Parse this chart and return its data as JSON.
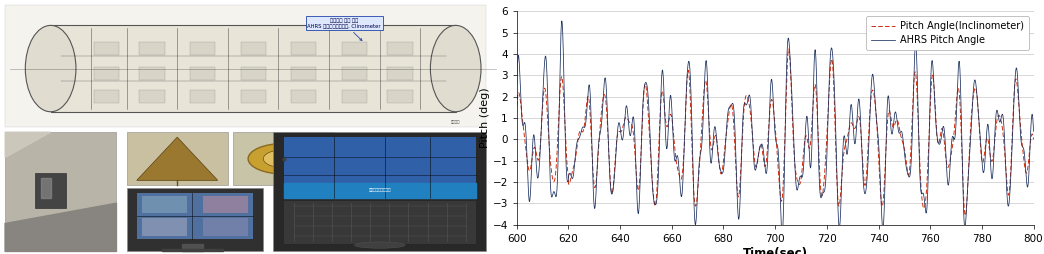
{
  "chart_xlim": [
    600,
    800
  ],
  "chart_ylim": [
    -4,
    6
  ],
  "chart_xlabel": "Time(sec)",
  "chart_ylabel": "Pitch (deg)",
  "chart_xticks": [
    600,
    620,
    640,
    660,
    680,
    700,
    720,
    740,
    760,
    780,
    800
  ],
  "chart_yticks": [
    -4,
    -3,
    -2,
    -1,
    0,
    1,
    2,
    3,
    4,
    5,
    6
  ],
  "legend_ahrs": "AHRS Pitch Angle",
  "legend_incl": "Pitch Angle(Inclinometer)",
  "line_color_ahrs": "#1a2f5e",
  "line_color_incl": "#cc2200",
  "background_color": "#ffffff",
  "grid_color": "#c8c8c8",
  "fig_width": 10.44,
  "fig_height": 2.54,
  "dpi": 100,
  "left_bg": "#f0f0f0",
  "photo_top_bg": "#e8e4d8",
  "photo_bl_bg": "#c8c4b8",
  "photo_m1_bg": "#b09850",
  "photo_m2_bg": "#c0a840",
  "photo_mm_bg": "#484848",
  "photo_r_bg": "#383838"
}
